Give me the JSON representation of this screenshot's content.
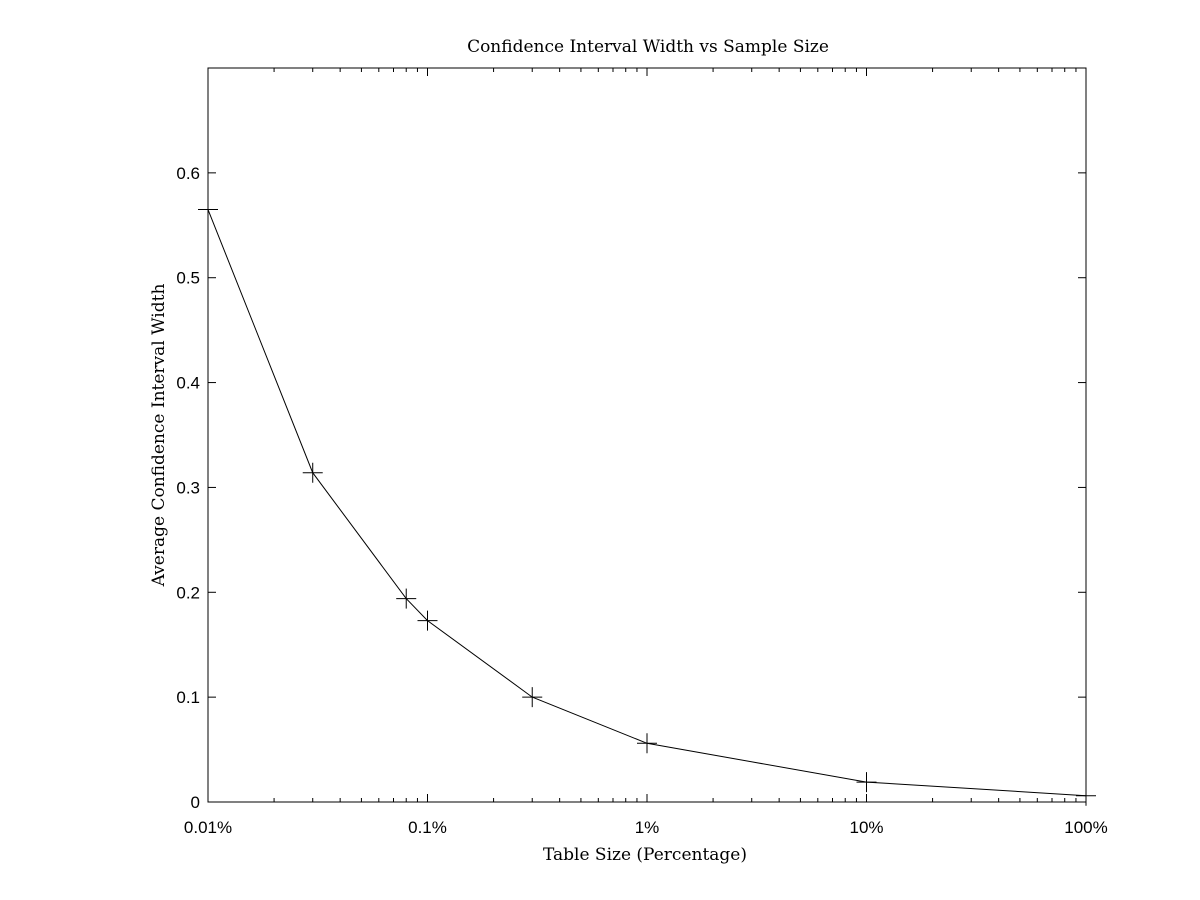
{
  "chart_data": {
    "type": "line",
    "title": "Confidence Interval Width vs Sample Size",
    "xlabel": "Table Size (Percentage)",
    "ylabel": "Average Confidence Interval Width",
    "x_scale": "log",
    "xlim": [
      0.01,
      100
    ],
    "ylim": [
      0,
      0.7
    ],
    "x_ticks": [
      0.01,
      0.1,
      1,
      10,
      100
    ],
    "x_tick_labels": [
      "0.01%",
      "0.1%",
      "1%",
      "10%",
      "100%"
    ],
    "y_ticks": [
      0,
      0.1,
      0.2,
      0.3,
      0.4,
      0.5,
      0.6
    ],
    "y_tick_labels": [
      "0",
      "0.1",
      "0.2",
      "0.3",
      "0.4",
      "0.5",
      "0.6"
    ],
    "grid": false,
    "marker": "plus",
    "line_color": "#000000",
    "x": [
      0.01,
      0.03,
      0.08,
      0.1,
      0.3,
      1,
      10,
      100
    ],
    "y": [
      0.565,
      0.314,
      0.194,
      0.173,
      0.1,
      0.056,
      0.019,
      0.006
    ]
  }
}
